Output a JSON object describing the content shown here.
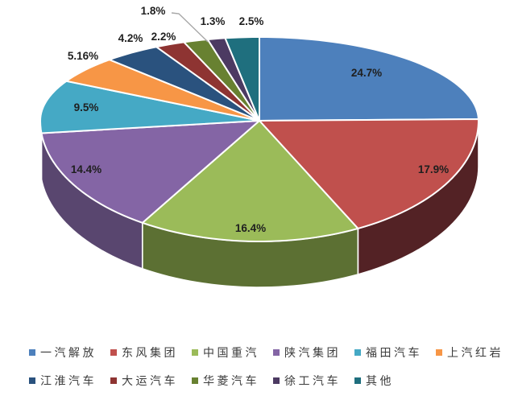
{
  "chart_data": {
    "type": "pie",
    "style": "3d",
    "title": "",
    "background": "#FFFFFF",
    "legend_position": "bottom",
    "legend_rows": [
      6,
      5
    ],
    "series": [
      {
        "name": "一汽解放",
        "value": 24.7,
        "label": "24.7%",
        "color": "#4D80BC"
      },
      {
        "name": "东风集团",
        "value": 17.9,
        "label": "17.9%",
        "color": "#C0504D"
      },
      {
        "name": "中国重汽",
        "value": 16.4,
        "label": "16.4%",
        "color": "#9BBB59"
      },
      {
        "name": "陕汽集团",
        "value": 14.4,
        "label": "14.4%",
        "color": "#8465A5"
      },
      {
        "name": "福田汽车",
        "value": 9.5,
        "label": "9.5%",
        "color": "#45A9C5"
      },
      {
        "name": "上汽红岩",
        "value": 5.16,
        "label": "5.16%",
        "color": "#F79646"
      },
      {
        "name": "江淮汽车",
        "value": 4.2,
        "label": "4.2%",
        "color": "#2A527E"
      },
      {
        "name": "大运汽车",
        "value": 2.2,
        "label": "2.2%",
        "color": "#8E3432"
      },
      {
        "name": "华菱汽车",
        "value": 1.8,
        "label": "1.8%",
        "color": "#688131"
      },
      {
        "name": "徐工汽车",
        "value": 1.3,
        "label": "1.3%",
        "color": "#4C3A62"
      },
      {
        "name": "其他",
        "value": 2.5,
        "label": "2.5%",
        "color": "#1F6F7E"
      }
    ]
  }
}
